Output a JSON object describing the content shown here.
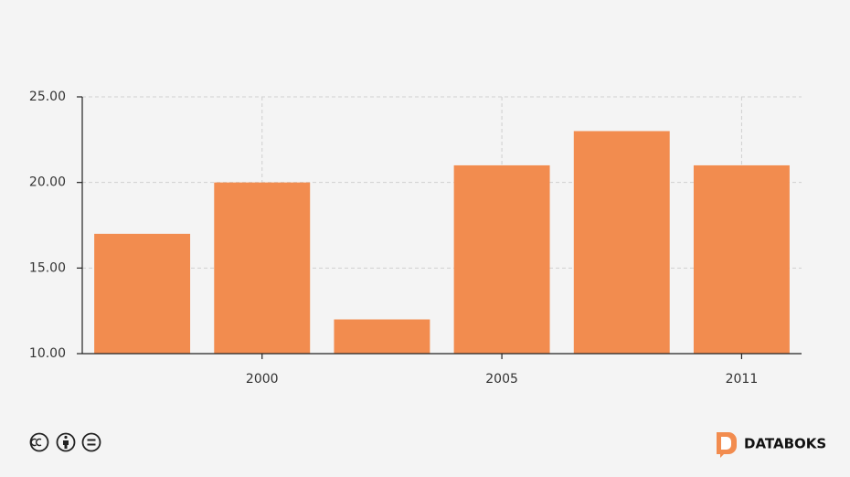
{
  "chart_data": {
    "type": "bar",
    "categories": [
      null,
      "2000",
      null,
      "2005",
      null,
      "2011"
    ],
    "values": [
      17,
      20,
      12,
      21,
      23,
      21
    ],
    "color": "#f28c4f",
    "ylim": [
      10,
      25
    ],
    "yticks": [
      {
        "value": 10,
        "label": "10.00"
      },
      {
        "value": 15,
        "label": "15.00"
      },
      {
        "value": 20,
        "label": "20.00"
      },
      {
        "value": 25,
        "label": "25.00"
      }
    ],
    "grid": true
  },
  "footer": {
    "brand": "DATABOKS"
  }
}
